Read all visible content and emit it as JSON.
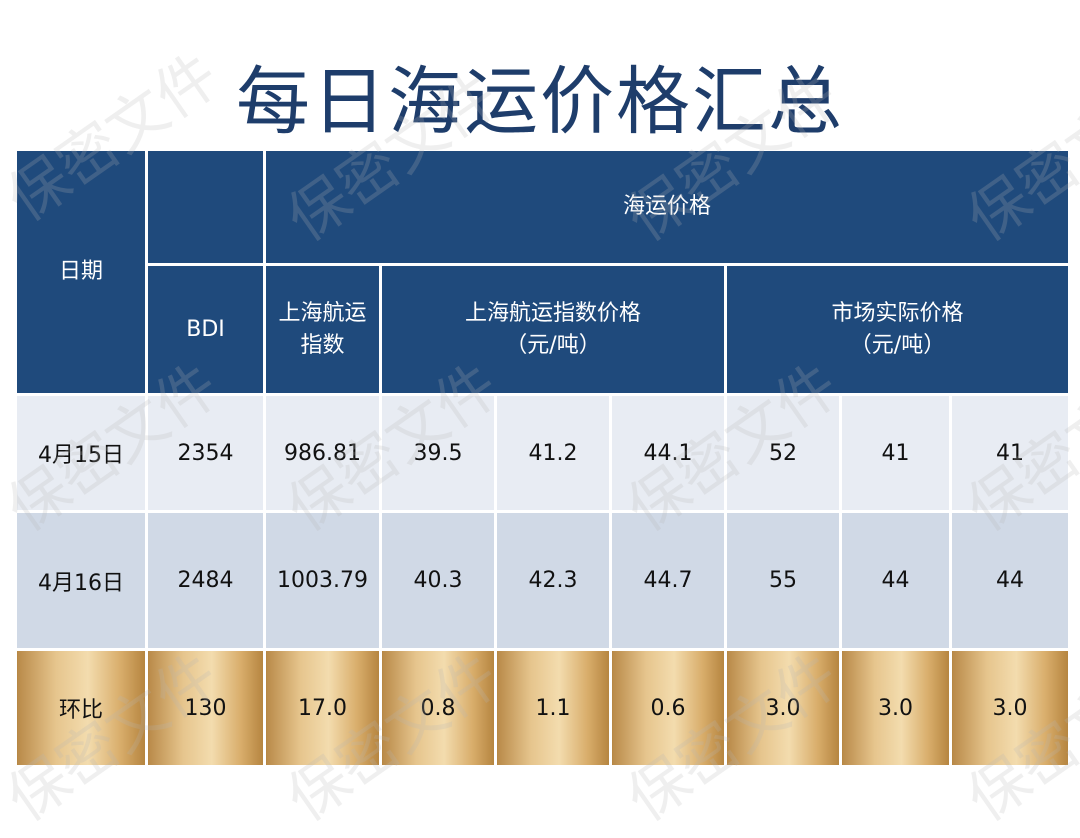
{
  "title": "每日海运价格汇总",
  "watermark": "保密文件",
  "header": {
    "date": "日期",
    "freight_price": "海运价格",
    "bdi": "BDI",
    "sh_index": "上海航运\n指数",
    "sh_index_price": "上海航运指数价格\n（元/吨）",
    "market_price": "市场实际价格\n（元/吨）"
  },
  "rows": [
    {
      "date": "4月15日",
      "cells": [
        "2354",
        "986.81",
        "39.5",
        "41.2",
        "44.1",
        "52",
        "41",
        "41"
      ]
    },
    {
      "date": "4月16日",
      "cells": [
        "2484",
        "1003.79",
        "40.3",
        "42.3",
        "44.7",
        "55",
        "44",
        "44"
      ]
    },
    {
      "date": "环比",
      "cells": [
        "130",
        "17.0",
        "0.8",
        "1.1",
        "0.6",
        "3.0",
        "3.0",
        "3.0"
      ]
    }
  ]
}
